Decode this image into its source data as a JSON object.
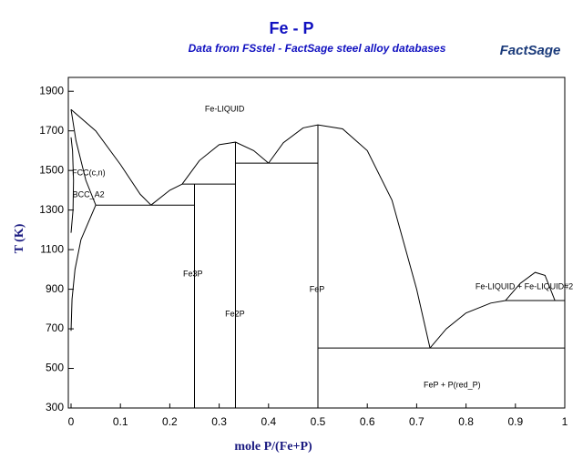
{
  "chart_data": {
    "type": "line",
    "title": "Fe - P",
    "subtitle": "Data from FSstel - FactSage steel alloy databases",
    "logo": "FactSage",
    "x_label": "mole P/(Fe+P)",
    "y_label": "T (K)",
    "xlim": [
      0,
      1
    ],
    "xticks": [
      0,
      0.1,
      0.2,
      0.3,
      0.4,
      0.5,
      0.6,
      0.7,
      0.8,
      0.9,
      1
    ],
    "ylim": [
      300,
      1970
    ],
    "yticks": [
      300,
      500,
      700,
      900,
      1100,
      1300,
      1500,
      1700,
      1900
    ],
    "series": [
      {
        "color": "#000000",
        "x": [
          0,
          0.05,
          0.1,
          0.14,
          0.162
        ],
        "values": [
          1808,
          1700,
          1530,
          1380,
          1325
        ]
      },
      {
        "color": "#000000",
        "x": [
          0.05,
          0.25
        ],
        "values": [
          1325,
          1325
        ]
      },
      {
        "color": "#000000",
        "x": [
          0.162,
          0.2,
          0.225
        ],
        "values": [
          1325,
          1400,
          1431
        ]
      },
      {
        "color": "#000000",
        "x": [
          0.225,
          0.333
        ],
        "values": [
          1431,
          1431
        ]
      },
      {
        "color": "#000000",
        "x": [
          0.225,
          0.26,
          0.3,
          0.333,
          0.37,
          0.4
        ],
        "values": [
          1431,
          1550,
          1630,
          1643,
          1600,
          1537
        ]
      },
      {
        "color": "#000000",
        "x": [
          0.333,
          0.5
        ],
        "values": [
          1537,
          1537
        ]
      },
      {
        "color": "#000000",
        "x": [
          0.4,
          0.43,
          0.47,
          0.5,
          0.55,
          0.6,
          0.65,
          0.7,
          0.727
        ],
        "values": [
          1537,
          1640,
          1715,
          1730,
          1710,
          1600,
          1350,
          900,
          603
        ]
      },
      {
        "color": "#000000",
        "x": [
          0.5,
          1
        ],
        "values": [
          603,
          603
        ]
      },
      {
        "color": "#000000",
        "x": [
          0.727,
          0.76,
          0.8,
          0.85,
          0.88
        ],
        "values": [
          603,
          700,
          780,
          830,
          843
        ]
      },
      {
        "color": "#000000",
        "x": [
          0.88,
          1
        ],
        "values": [
          843,
          843
        ]
      },
      {
        "color": "#000000",
        "x": [
          0.88,
          0.91,
          0.94,
          0.96,
          0.98
        ],
        "values": [
          843,
          930,
          985,
          970,
          843
        ]
      },
      {
        "color": "#000000",
        "x": [
          0.25,
          0.25
        ],
        "values": [
          300,
          1431
        ]
      },
      {
        "color": "#000000",
        "x": [
          0.333,
          0.333
        ],
        "values": [
          300,
          1643
        ]
      },
      {
        "color": "#000000",
        "x": [
          0.5,
          0.5
        ],
        "values": [
          300,
          1730
        ]
      },
      {
        "color": "#000000",
        "x": [
          0,
          0.01,
          0.03,
          0.05
        ],
        "values": [
          1808,
          1650,
          1450,
          1325
        ]
      },
      {
        "color": "#000000",
        "x": [
          0.05,
          0.02,
          0.008,
          0.002,
          0
        ],
        "values": [
          1325,
          1150,
          1000,
          850,
          690
        ]
      },
      {
        "color": "#000000",
        "x": [
          0,
          0.004,
          0.005,
          0.003,
          0
        ],
        "values": [
          1185,
          1300,
          1450,
          1600,
          1667
        ]
      }
    ],
    "annotations": [
      {
        "text": "Fe-LIQUID",
        "x": 0.271,
        "y": 1808
      },
      {
        "text": "FCC(c,n)",
        "x": 0.002,
        "y": 1486
      },
      {
        "text": "BCC_A2",
        "x": 0.003,
        "y": 1376
      },
      {
        "text": "Fe3P",
        "x": 0.227,
        "y": 976
      },
      {
        "text": "Fe2P",
        "x": 0.312,
        "y": 774
      },
      {
        "text": "FeP",
        "x": 0.483,
        "y": 898
      },
      {
        "text": "Fe-LIQUID + Fe-LIQUID#2",
        "x": 0.819,
        "y": 911
      },
      {
        "text": "FeP + P(red_P)",
        "x": 0.714,
        "y": 415
      }
    ]
  }
}
